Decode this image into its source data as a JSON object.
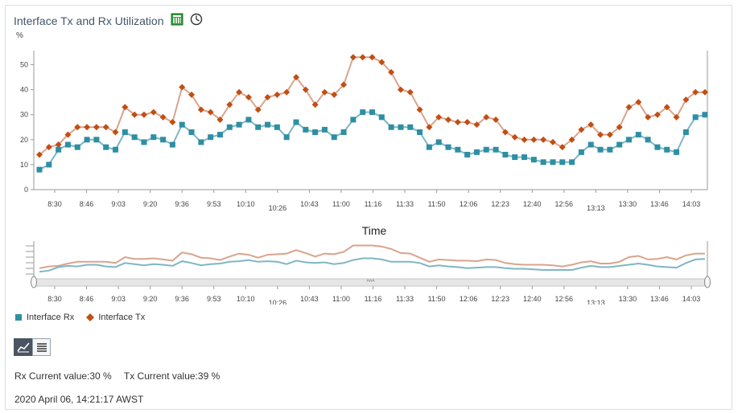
{
  "header": {
    "title": "Interface Tx and Rx Utilization",
    "icons": [
      "table-icon",
      "clock-icon"
    ]
  },
  "chart": {
    "unit_label": "%",
    "x_title": "Time",
    "nav_grip": "^^^"
  },
  "legend": {
    "rx_label": "Interface Rx",
    "tx_label": "Interface Tx"
  },
  "footer": {
    "rx_current": "Rx Current value:30 %",
    "tx_current": "Tx Current value:39 %",
    "timestamp": "2020 April 06, 14:21:17 AWST"
  },
  "colors": {
    "rx": "#2e8fa3",
    "tx": "#c24e12",
    "rx_line": "#7fb6c4",
    "tx_line": "#d9a48c"
  },
  "chart_data": {
    "type": "line",
    "ylabel": "%",
    "xlabel": "Time",
    "ylim": [
      0,
      55
    ],
    "yticks": [
      0,
      10,
      20,
      30,
      40,
      50
    ],
    "grid": false,
    "legend_position": "bottom-left",
    "x_tick_labels": [
      "8:30",
      "8:46",
      "9:03",
      "9:20",
      "9:36",
      "9:53",
      "10:10",
      "10:26",
      "10:43",
      "11:00",
      "11:16",
      "11:33",
      "11:50",
      "12:06",
      "12:23",
      "12:40",
      "12:56",
      "13:13",
      "13:30",
      "13:46",
      "14:03"
    ],
    "series": [
      {
        "name": "Interface Rx",
        "values": [
          8,
          10,
          16,
          18,
          17,
          20,
          20,
          17,
          16,
          23,
          21,
          19,
          21,
          20,
          18,
          26,
          23,
          19,
          21,
          22,
          25,
          26,
          28,
          25,
          26,
          25,
          21,
          27,
          24,
          23,
          24,
          21,
          23,
          28,
          31,
          31,
          29,
          25,
          25,
          25,
          23,
          17,
          19,
          17,
          16,
          14,
          15,
          16,
          16,
          14,
          13,
          13,
          12,
          11,
          11,
          11,
          11,
          15,
          18,
          16,
          16,
          18,
          20,
          22,
          20,
          17,
          16,
          15,
          23,
          29,
          30
        ]
      },
      {
        "name": "Interface Tx",
        "values": [
          14,
          17,
          18,
          22,
          25,
          25,
          25,
          25,
          23,
          33,
          30,
          30,
          31,
          29,
          27,
          41,
          38,
          32,
          31,
          28,
          34,
          39,
          37,
          32,
          37,
          38,
          39,
          45,
          40,
          34,
          39,
          38,
          42,
          53,
          53,
          53,
          51,
          47,
          40,
          39,
          32,
          25,
          29,
          28,
          27,
          27,
          26,
          29,
          28,
          23,
          21,
          20,
          20,
          20,
          19,
          17,
          20,
          24,
          26,
          22,
          22,
          25,
          33,
          35,
          29,
          30,
          33,
          29,
          36,
          39,
          39
        ]
      }
    ]
  }
}
